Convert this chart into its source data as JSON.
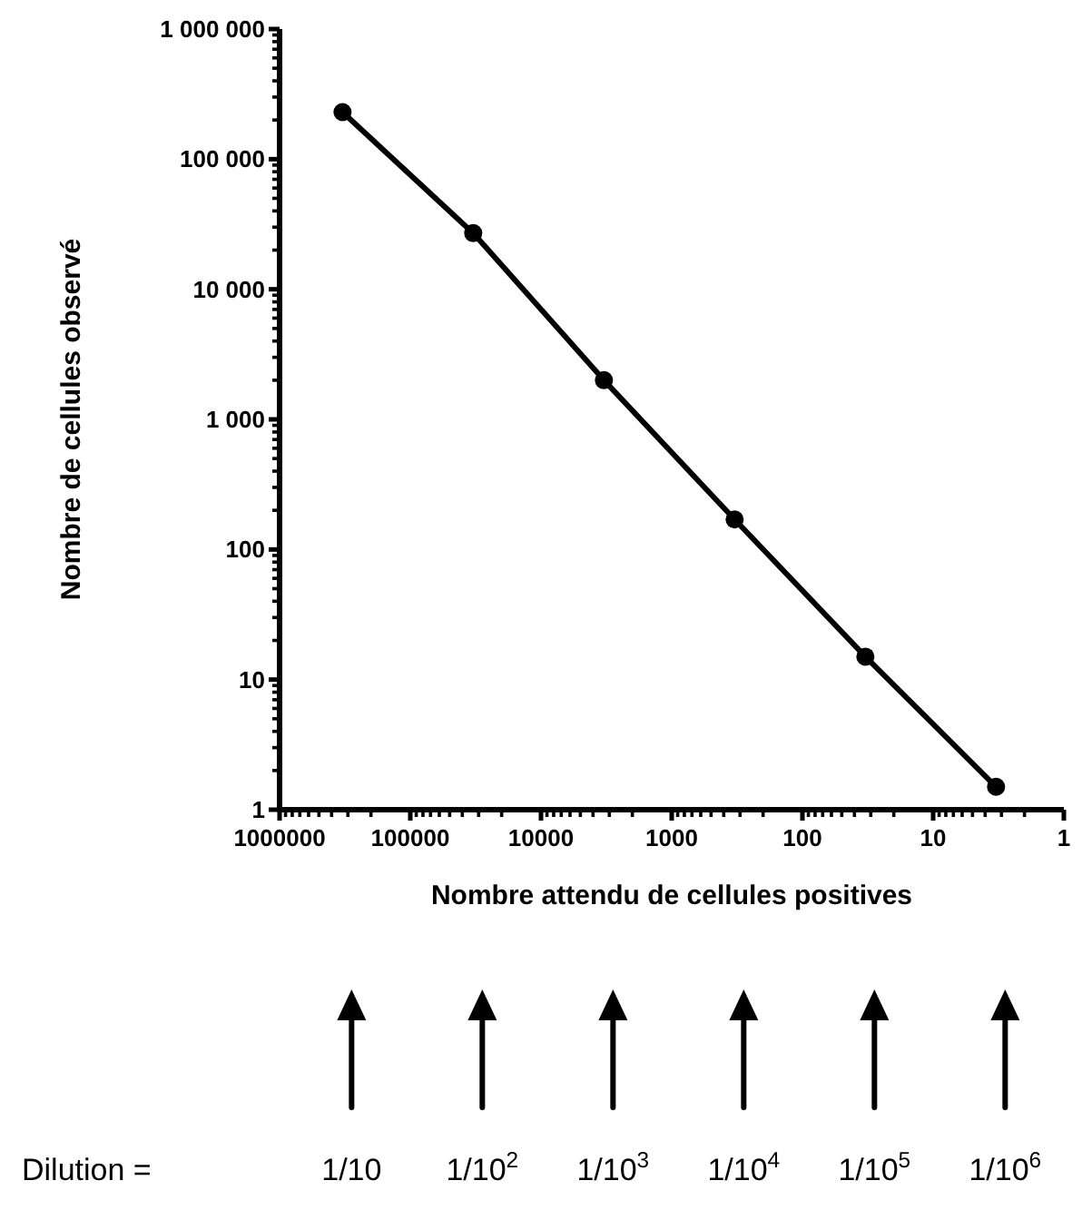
{
  "chart_data": {
    "type": "line",
    "xlabel": "Nombre attendu de cellules positives",
    "ylabel": "Nombre de cellules observé",
    "x": [
      330000,
      33000,
      3300,
      330,
      33,
      3.3
    ],
    "series": [
      {
        "color": "#000000",
        "values": [
          230000,
          27000,
          2000,
          170,
          15,
          1.5
        ]
      }
    ],
    "log": "xy",
    "marker": "circle",
    "line_style": "solid",
    "grid": false,
    "xlim": [
      1000000,
      1
    ],
    "ylim": [
      1,
      1000000
    ],
    "xticks": [
      1000000,
      {
        "value": 900000,
        "label": null
      },
      {
        "value": 800000,
        "label": null
      },
      {
        "value": 700000,
        "label": null
      },
      {
        "value": 600000,
        "label": null
      },
      {
        "value": 500000,
        "label": null
      },
      {
        "value": 400000,
        "label": null
      },
      {
        "value": 300000,
        "label": null
      },
      {
        "value": 200000,
        "label": null
      },
      100000,
      {
        "value": 90000,
        "label": null
      },
      {
        "value": 80000,
        "label": null
      },
      {
        "value": 70000,
        "label": null
      },
      {
        "value": 60000,
        "label": null
      },
      {
        "value": 50000,
        "label": null
      },
      {
        "value": 40000,
        "label": null
      },
      {
        "value": 30000,
        "label": null
      },
      {
        "value": 20000,
        "label": null
      },
      10000,
      {
        "value": 9000,
        "label": null
      },
      {
        "value": 8000,
        "label": null
      },
      {
        "value": 7000,
        "label": null
      },
      {
        "value": 6000,
        "label": null
      },
      {
        "value": 5000,
        "label": null
      },
      {
        "value": 4000,
        "label": null
      },
      {
        "value": 3000,
        "label": null
      },
      {
        "value": 2000,
        "label": null
      },
      1000,
      {
        "value": 900,
        "label": null
      },
      {
        "value": 800,
        "label": null
      },
      {
        "value": 700,
        "label": null
      },
      {
        "value": 600,
        "label": null
      },
      {
        "value": 500,
        "label": null
      },
      {
        "value": 400,
        "label": null
      },
      {
        "value": 300,
        "label": null
      },
      {
        "value": 200,
        "label": null
      },
      100,
      {
        "value": 90,
        "label": null
      },
      {
        "value": 80,
        "label": null
      },
      {
        "value": 70,
        "label": null
      },
      {
        "value": 60,
        "label": null
      },
      {
        "value": 50,
        "label": null
      },
      {
        "value": 40,
        "label": null
      },
      {
        "value": 30,
        "label": null
      },
      {
        "value": 20,
        "label": null
      },
      10,
      {
        "value": 9,
        "label": null
      },
      {
        "value": 8,
        "label": null
      },
      {
        "value": 7,
        "label": null
      },
      {
        "value": 6,
        "label": null
      },
      {
        "value": 5,
        "label": null
      },
      {
        "value": 4,
        "label": null
      },
      {
        "value": 3,
        "label": null
      },
      {
        "value": 2,
        "label": null
      },
      1
    ],
    "yticks": [
      {
        "value": 1,
        "label": "1"
      },
      {
        "value": 2,
        "label": null
      },
      {
        "value": 3,
        "label": null
      },
      {
        "value": 4,
        "label": null
      },
      {
        "value": 5,
        "label": null
      },
      {
        "value": 6,
        "label": null
      },
      {
        "value": 7,
        "label": null
      },
      {
        "value": 8,
        "label": null
      },
      {
        "value": 9,
        "label": null
      },
      {
        "value": 10,
        "label": "10"
      },
      {
        "value": 20,
        "label": null
      },
      {
        "value": 30,
        "label": null
      },
      {
        "value": 40,
        "label": null
      },
      {
        "value": 50,
        "label": null
      },
      {
        "value": 60,
        "label": null
      },
      {
        "value": 70,
        "label": null
      },
      {
        "value": 80,
        "label": null
      },
      {
        "value": 90,
        "label": null
      },
      {
        "value": 100,
        "label": "100"
      },
      {
        "value": 200,
        "label": null
      },
      {
        "value": 300,
        "label": null
      },
      {
        "value": 400,
        "label": null
      },
      {
        "value": 500,
        "label": null
      },
      {
        "value": 600,
        "label": null
      },
      {
        "value": 700,
        "label": null
      },
      {
        "value": 800,
        "label": null
      },
      {
        "value": 900,
        "label": null
      },
      {
        "value": 1000,
        "label": "1 000"
      },
      {
        "value": 2000,
        "label": null
      },
      {
        "value": 3000,
        "label": null
      },
      {
        "value": 4000,
        "label": null
      },
      {
        "value": 5000,
        "label": null
      },
      {
        "value": 6000,
        "label": null
      },
      {
        "value": 7000,
        "label": null
      },
      {
        "value": 8000,
        "label": null
      },
      {
        "value": 9000,
        "label": null
      },
      {
        "value": 10000,
        "label": "10 000"
      },
      {
        "value": 20000,
        "label": null
      },
      {
        "value": 30000,
        "label": null
      },
      {
        "value": 40000,
        "label": null
      },
      {
        "value": 50000,
        "label": null
      },
      {
        "value": 60000,
        "label": null
      },
      {
        "value": 70000,
        "label": null
      },
      {
        "value": 80000,
        "label": null
      },
      {
        "value": 90000,
        "label": null
      },
      {
        "value": 100000,
        "label": "100 000"
      },
      {
        "value": 200000,
        "label": null
      },
      {
        "value": 300000,
        "label": null
      },
      {
        "value": 400000,
        "label": null
      },
      {
        "value": 500000,
        "label": null
      },
      {
        "value": 600000,
        "label": null
      },
      {
        "value": 700000,
        "label": null
      },
      {
        "value": 800000,
        "label": null
      },
      {
        "value": 900000,
        "label": null
      },
      {
        "value": 1000000,
        "label": "1 000 000"
      }
    ],
    "annotations": [
      "Dilution =",
      "1/10",
      "1/10$^{2}$",
      "1/10$^{3}$",
      "1/10$^{4}$",
      "1/10$^{5}$",
      "1/10$^{6}$"
    ]
  }
}
